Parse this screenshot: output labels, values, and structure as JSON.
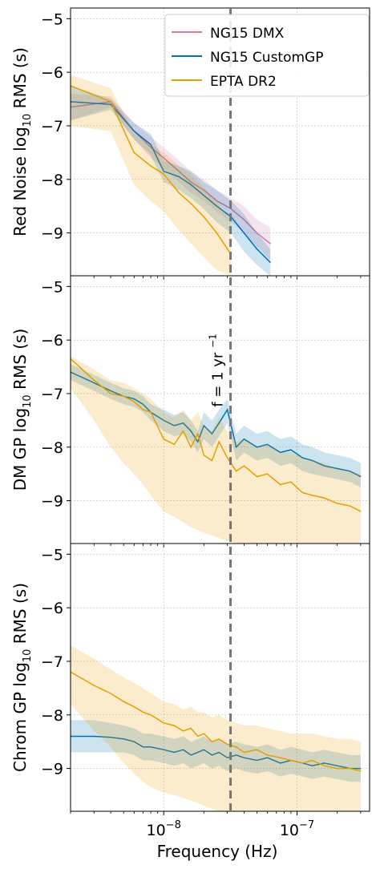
{
  "chart_data": {
    "type": "line",
    "x_scale": "log",
    "xlim": [
      2e-09,
      3.5e-07
    ],
    "xlabel": "Frequency (Hz)",
    "x_ticks": [
      {
        "value": 1e-08,
        "label_base": "10",
        "label_exp": "−8"
      },
      {
        "value": 1e-07,
        "label_base": "10",
        "label_exp": "−7"
      }
    ],
    "y_ticks": [
      -5,
      -6,
      -7,
      -8,
      -9
    ],
    "grid": true,
    "legend": {
      "placement": "top-right",
      "entries": [
        "NG15 DMX",
        "NG15 CustomGP",
        "EPTA DR2"
      ]
    },
    "colors": {
      "NG15 DMX": "#cc79a7",
      "NG15 CustomGP": "#0072b2",
      "EPTA DR2": "#e69f00"
    },
    "reference_line": {
      "x": 3.17e-08,
      "label_main": "f = 1 yr",
      "label_exp": "−1",
      "style": "dashed",
      "color": "#777777"
    },
    "panels": [
      {
        "ylabel_main": "Red Noise log",
        "ylabel_sub": "10",
        "ylabel_tail": "RMS (s)",
        "ylim": [
          -9.8,
          -4.8
        ],
        "series": [
          {
            "name": "NG15 DMX",
            "x": [
              2e-09,
              4e-09,
              6e-09,
              8e-09,
              1e-08,
              1.3e-08,
              1.6e-08,
              2e-08,
              2.5e-08,
              3.2e-08,
              4e-08,
              5e-08,
              6.3e-08
            ],
            "y": [
              -6.65,
              -6.55,
              -7.1,
              -7.4,
              -7.6,
              -7.85,
              -8.05,
              -8.2,
              -8.4,
              -8.55,
              -8.75,
              -9.0,
              -9.2
            ],
            "lo": [
              -6.9,
              -6.65,
              -7.25,
              -7.6,
              -7.8,
              -8.05,
              -8.25,
              -8.4,
              -8.6,
              -8.8,
              -9.0,
              -9.25,
              -9.5
            ],
            "hi": [
              -6.4,
              -6.45,
              -6.95,
              -7.2,
              -7.4,
              -7.65,
              -7.85,
              -8.0,
              -8.2,
              -8.35,
              -8.5,
              -8.75,
              -8.9
            ]
          },
          {
            "name": "NG15 CustomGP",
            "x": [
              2e-09,
              4e-09,
              6e-09,
              8e-09,
              1e-08,
              1.3e-08,
              1.6e-08,
              2e-08,
              2.5e-08,
              3.2e-08,
              4e-08,
              5e-08,
              6.3e-08
            ],
            "y": [
              -6.55,
              -6.6,
              -7.1,
              -7.35,
              -7.85,
              -7.95,
              -8.1,
              -8.3,
              -8.5,
              -8.7,
              -9.0,
              -9.3,
              -9.55
            ],
            "lo": [
              -6.9,
              -6.7,
              -7.25,
              -7.55,
              -8.05,
              -8.2,
              -8.35,
              -8.55,
              -8.8,
              -9.0,
              -9.35,
              -9.6,
              -9.8
            ],
            "hi": [
              -6.25,
              -6.5,
              -6.95,
              -7.15,
              -7.65,
              -7.75,
              -7.85,
              -8.05,
              -8.2,
              -8.4,
              -8.65,
              -9.0,
              -9.3
            ]
          },
          {
            "name": "EPTA DR2",
            "x": [
              2e-09,
              4e-09,
              6e-09,
              8e-09,
              1e-08,
              1.3e-08,
              1.6e-08,
              2e-08,
              2.5e-08,
              3.2e-08
            ],
            "y": [
              -6.25,
              -6.55,
              -7.5,
              -7.75,
              -7.9,
              -8.25,
              -8.45,
              -8.7,
              -9.0,
              -9.4
            ],
            "lo": [
              -7.0,
              -7.1,
              -8.1,
              -8.4,
              -8.6,
              -8.95,
              -9.2,
              -9.45,
              -9.7,
              -9.8
            ],
            "hi": [
              -6.05,
              -6.3,
              -7.15,
              -7.35,
              -7.5,
              -7.75,
              -7.9,
              -8.15,
              -8.4,
              -8.8
            ]
          }
        ]
      },
      {
        "ylabel_main": "DM GP log",
        "ylabel_sub": "10",
        "ylabel_tail": "RMS (s)",
        "ylim": [
          -9.8,
          -4.8
        ],
        "series": [
          {
            "name": "NG15 CustomGP",
            "x": [
              2e-09,
              3e-09,
              4e-09,
              5e-09,
              6e-09,
              7e-09,
              8e-09,
              1e-08,
              1.2e-08,
              1.4e-08,
              1.6e-08,
              1.8e-08,
              2e-08,
              2.3e-08,
              2.6e-08,
              3e-08,
              3.5e-08,
              4e-08,
              5e-08,
              6e-08,
              7.5e-08,
              9e-08,
              1.1e-07,
              1.3e-07,
              1.6e-07,
              2e-07,
              2.5e-07,
              3e-07
            ],
            "y": [
              -6.6,
              -6.8,
              -6.95,
              -7.05,
              -7.1,
              -7.2,
              -7.35,
              -7.5,
              -7.6,
              -7.55,
              -7.7,
              -7.9,
              -7.6,
              -7.75,
              -7.55,
              -7.3,
              -8.0,
              -7.85,
              -8.0,
              -7.95,
              -8.1,
              -8.05,
              -8.2,
              -8.25,
              -8.35,
              -8.4,
              -8.45,
              -8.55
            ],
            "lo": [
              -6.75,
              -6.95,
              -7.1,
              -7.2,
              -7.25,
              -7.35,
              -7.5,
              -7.7,
              -7.8,
              -7.75,
              -7.9,
              -8.1,
              -7.85,
              -8.0,
              -7.8,
              -7.55,
              -8.25,
              -8.1,
              -8.25,
              -8.2,
              -8.35,
              -8.3,
              -8.45,
              -8.5,
              -8.55,
              -8.6,
              -8.65,
              -8.75
            ],
            "hi": [
              -6.45,
              -6.65,
              -6.8,
              -6.9,
              -6.95,
              -7.05,
              -7.2,
              -7.3,
              -7.4,
              -7.35,
              -7.5,
              -7.7,
              -7.35,
              -7.5,
              -7.3,
              -7.1,
              -7.75,
              -7.6,
              -7.75,
              -7.7,
              -7.85,
              -7.8,
              -7.95,
              -8.0,
              -8.1,
              -8.15,
              -8.2,
              -8.3
            ]
          },
          {
            "name": "EPTA DR2",
            "x": [
              2e-09,
              3e-09,
              4e-09,
              5e-09,
              6e-09,
              7e-09,
              8e-09,
              1e-08,
              1.2e-08,
              1.4e-08,
              1.6e-08,
              1.8e-08,
              2e-08,
              2.3e-08,
              2.6e-08,
              3e-08,
              3.5e-08,
              4e-08,
              5e-08,
              6e-08,
              7.5e-08,
              9e-08,
              1.1e-07,
              1.3e-07,
              1.6e-07,
              2e-07,
              2.5e-07,
              3e-07
            ],
            "y": [
              -6.35,
              -6.75,
              -7.0,
              -7.05,
              -7.15,
              -7.3,
              -7.35,
              -7.85,
              -7.95,
              -7.7,
              -8.0,
              -7.75,
              -8.15,
              -8.25,
              -7.9,
              -8.2,
              -8.45,
              -8.35,
              -8.55,
              -8.5,
              -8.7,
              -8.65,
              -8.85,
              -8.9,
              -8.95,
              -9.05,
              -9.1,
              -9.2
            ],
            "lo": [
              -6.9,
              -7.5,
              -8.0,
              -8.3,
              -8.5,
              -8.7,
              -8.9,
              -9.2,
              -9.3,
              -9.4,
              -9.5,
              -9.55,
              -9.6,
              -9.65,
              -9.7,
              -9.75,
              -9.8,
              -9.8,
              -9.8,
              -9.8,
              -9.8,
              -9.8,
              -9.8,
              -9.8,
              -9.8,
              -9.8,
              -9.8,
              -9.8
            ],
            "hi": [
              -6.3,
              -6.55,
              -6.75,
              -6.8,
              -6.9,
              -7.0,
              -7.1,
              -7.35,
              -7.45,
              -7.3,
              -7.5,
              -7.35,
              -7.6,
              -7.7,
              -7.45,
              -7.7,
              -7.9,
              -7.85,
              -8.0,
              -7.95,
              -8.1,
              -8.1,
              -8.2,
              -8.25,
              -8.3,
              -8.4,
              -8.45,
              -8.5
            ]
          }
        ]
      },
      {
        "ylabel_main": "Chrom GP log",
        "ylabel_sub": "10",
        "ylabel_tail": "RMS (s)",
        "ylim": [
          -9.8,
          -4.8
        ],
        "series": [
          {
            "name": "NG15 CustomGP",
            "x": [
              2e-09,
              3e-09,
              4e-09,
              5e-09,
              6e-09,
              7e-09,
              8e-09,
              1e-08,
              1.2e-08,
              1.4e-08,
              1.6e-08,
              1.8e-08,
              2e-08,
              2.3e-08,
              2.6e-08,
              3e-08,
              3.5e-08,
              4e-08,
              5e-08,
              6e-08,
              7.5e-08,
              9e-08,
              1.1e-07,
              1.3e-07,
              1.6e-07,
              2e-07,
              2.5e-07,
              3e-07
            ],
            "y": [
              -8.4,
              -8.4,
              -8.42,
              -8.45,
              -8.5,
              -8.6,
              -8.6,
              -8.65,
              -8.7,
              -8.65,
              -8.75,
              -8.7,
              -8.65,
              -8.75,
              -8.7,
              -8.8,
              -8.75,
              -8.8,
              -8.85,
              -8.8,
              -8.9,
              -8.85,
              -8.9,
              -8.95,
              -8.9,
              -8.95,
              -9.0,
              -9.0
            ],
            "lo": [
              -8.7,
              -8.7,
              -8.7,
              -8.7,
              -8.75,
              -8.85,
              -8.85,
              -8.9,
              -8.95,
              -8.9,
              -9.0,
              -8.95,
              -8.9,
              -9.0,
              -8.95,
              -9.05,
              -9.0,
              -9.05,
              -9.1,
              -9.05,
              -9.15,
              -9.1,
              -9.15,
              -9.2,
              -9.15,
              -9.2,
              -9.25,
              -9.25
            ],
            "hi": [
              -8.1,
              -8.1,
              -8.15,
              -8.2,
              -8.25,
              -8.35,
              -8.35,
              -8.4,
              -8.45,
              -8.4,
              -8.5,
              -8.45,
              -8.4,
              -8.5,
              -8.45,
              -8.55,
              -8.5,
              -8.55,
              -8.6,
              -8.55,
              -8.65,
              -8.6,
              -8.65,
              -8.7,
              -8.65,
              -8.7,
              -8.75,
              -8.75
            ]
          },
          {
            "name": "EPTA DR2",
            "x": [
              2e-09,
              3e-09,
              4e-09,
              5e-09,
              6e-09,
              7e-09,
              8e-09,
              1e-08,
              1.2e-08,
              1.4e-08,
              1.6e-08,
              1.8e-08,
              2e-08,
              2.3e-08,
              2.6e-08,
              3e-08,
              3.5e-08,
              4e-08,
              5e-08,
              6e-08,
              7.5e-08,
              9e-08,
              1.1e-07,
              1.3e-07,
              1.6e-07,
              2e-07,
              2.5e-07,
              3e-07
            ],
            "y": [
              -7.2,
              -7.45,
              -7.6,
              -7.75,
              -7.85,
              -7.95,
              -8.0,
              -8.15,
              -8.2,
              -8.3,
              -8.25,
              -8.4,
              -8.35,
              -8.5,
              -8.45,
              -8.55,
              -8.6,
              -8.7,
              -8.65,
              -8.75,
              -8.8,
              -8.85,
              -8.9,
              -8.85,
              -8.95,
              -9.0,
              -9.0,
              -9.05
            ],
            "lo": [
              -7.8,
              -8.3,
              -8.6,
              -8.9,
              -9.1,
              -9.25,
              -9.35,
              -9.45,
              -9.5,
              -9.55,
              -9.6,
              -9.65,
              -9.7,
              -9.75,
              -9.8,
              -9.8,
              -9.8,
              -9.8,
              -9.8,
              -9.8,
              -9.8,
              -9.8,
              -9.8,
              -9.8,
              -9.8,
              -9.8,
              -9.8,
              -9.8
            ],
            "hi": [
              -6.7,
              -6.95,
              -7.15,
              -7.3,
              -7.4,
              -7.5,
              -7.6,
              -7.75,
              -7.8,
              -7.9,
              -7.85,
              -7.95,
              -7.95,
              -8.05,
              -8.0,
              -8.1,
              -8.15,
              -8.2,
              -8.2,
              -8.25,
              -8.3,
              -8.35,
              -8.35,
              -8.35,
              -8.4,
              -8.45,
              -8.45,
              -8.5
            ]
          }
        ]
      }
    ]
  }
}
